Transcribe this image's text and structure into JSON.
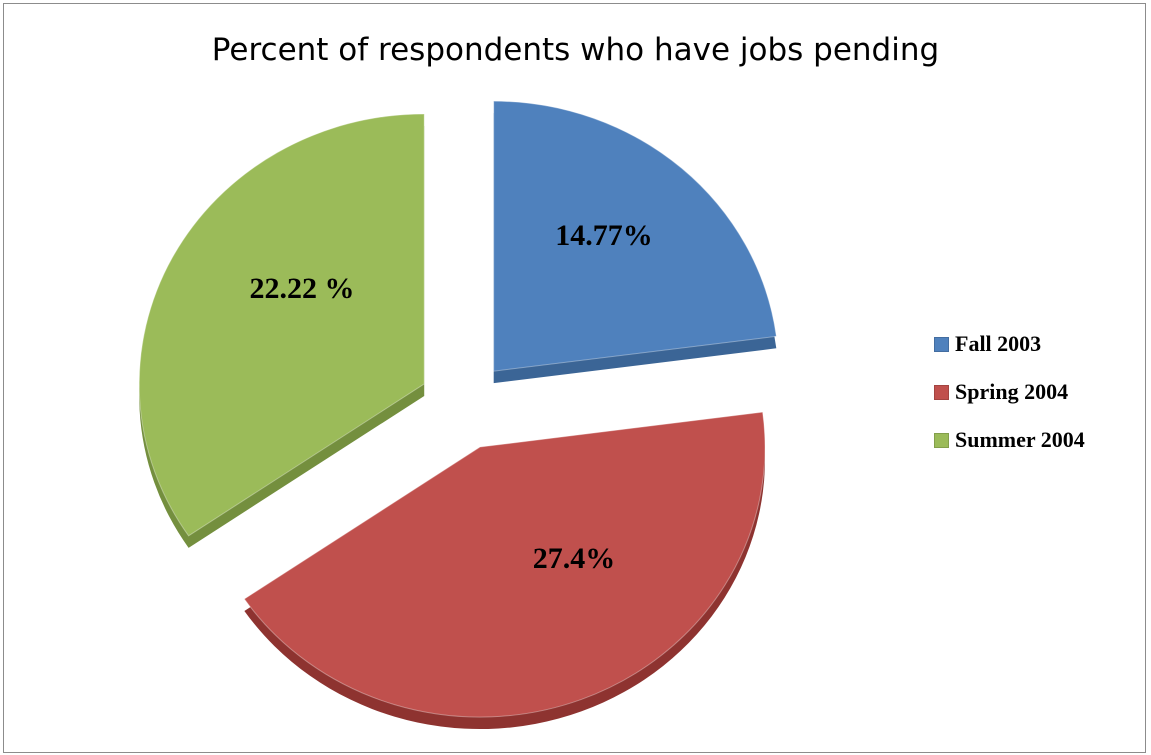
{
  "chart_data": {
    "type": "pie",
    "title": "Percent of respondents who have jobs pending",
    "slices": [
      {
        "name": "Fall 2003",
        "value": 14.77,
        "label": "14.77%",
        "color": "#4f81bd",
        "side": "#3b6596"
      },
      {
        "name": "Spring 2004",
        "value": 27.4,
        "label": "27.4%",
        "color": "#c0504d",
        "side": "#8e3330"
      },
      {
        "name": "Summer 2004",
        "value": 22.22,
        "label": "22.22 %",
        "color": "#9bbb59",
        "side": "#748f3e"
      }
    ],
    "legend_position": "right",
    "style": "3D exploded"
  }
}
